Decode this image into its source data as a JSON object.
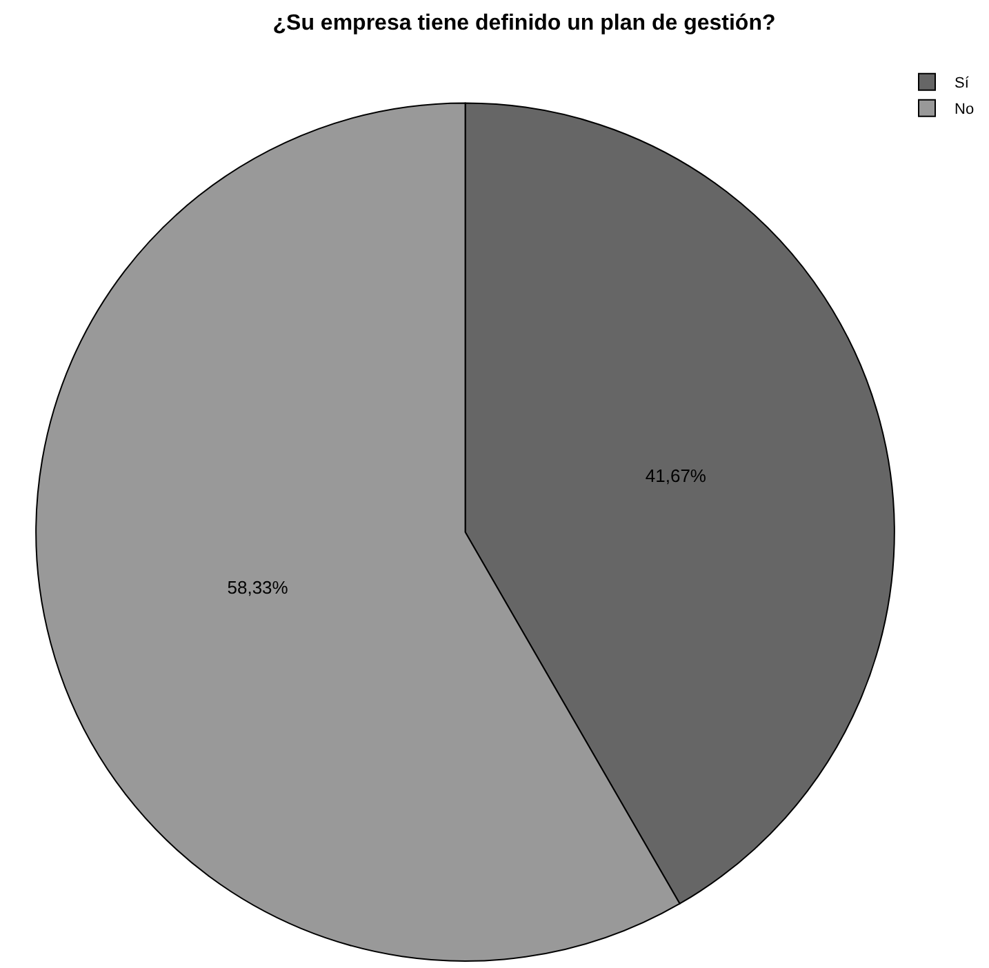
{
  "chart_data": {
    "type": "pie",
    "title": "¿Su empresa tiene definido un plan de gestión?",
    "categories": [
      "Sí",
      "No"
    ],
    "values": [
      41.67,
      58.33
    ],
    "colors": [
      "#666666",
      "#999999"
    ],
    "value_labels": [
      "41,67%",
      "58,33%"
    ],
    "legend": "top right"
  }
}
